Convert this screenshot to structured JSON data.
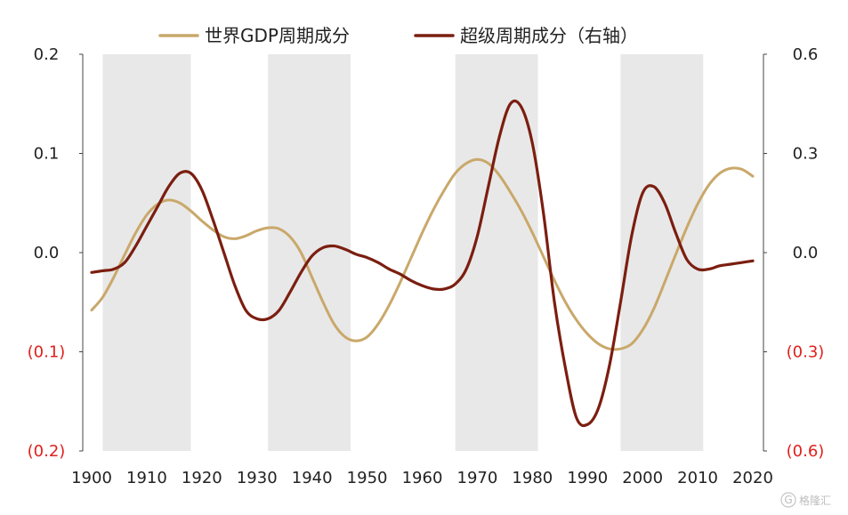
{
  "chart_data": {
    "type": "line",
    "title": "",
    "xlabel": "",
    "ylabel": "",
    "xlim": [
      1900,
      2020
    ],
    "x_ticks": [
      1900,
      1910,
      1920,
      1930,
      1940,
      1950,
      1960,
      1970,
      1980,
      1990,
      2000,
      2010,
      2020
    ],
    "x_tick_labels": [
      "1900",
      "1910",
      "1920",
      "1930",
      "1940",
      "1950",
      "1960",
      "1970",
      "1980",
      "1990",
      "2000",
      "2010",
      "2020"
    ],
    "y_left": {
      "range": [
        -0.2,
        0.2
      ],
      "ticks": [
        0.2,
        0.1,
        0.0,
        -0.1,
        -0.2
      ],
      "tick_labels": [
        "0.2",
        "0.1",
        "0.0",
        "(0.1)",
        "(0.2)"
      ],
      "negative_color": "#e0201b"
    },
    "y_right": {
      "range": [
        -0.6,
        0.6
      ],
      "ticks": [
        0.6,
        0.3,
        0.0,
        -0.3,
        -0.6
      ],
      "tick_labels": [
        "0.6",
        "0.3",
        "0.0",
        "(0.3)",
        "(0.6)"
      ],
      "negative_color": "#e0201b"
    },
    "shaded_periods": [
      [
        1902,
        1918
      ],
      [
        1932,
        1947
      ],
      [
        1966,
        1981
      ],
      [
        1996,
        2011
      ]
    ],
    "shade_color": "#e8e8e8",
    "grid": false,
    "legend_position": "top-center",
    "series": [
      {
        "name": "世界GDP周期成分",
        "axis": "left",
        "color": "#c9a86a",
        "x": [
          1900,
          1902,
          1904,
          1906,
          1908,
          1910,
          1912,
          1914,
          1916,
          1918,
          1920,
          1922,
          1924,
          1926,
          1928,
          1930,
          1932,
          1934,
          1936,
          1938,
          1940,
          1942,
          1944,
          1946,
          1948,
          1950,
          1952,
          1954,
          1956,
          1958,
          1960,
          1962,
          1964,
          1966,
          1968,
          1970,
          1972,
          1974,
          1976,
          1978,
          1980,
          1982,
          1984,
          1986,
          1988,
          1990,
          1992,
          1994,
          1996,
          1998,
          2000,
          2002,
          2004,
          2006,
          2008,
          2010,
          2012,
          2014,
          2016,
          2018,
          2020
        ],
        "values": [
          -0.058,
          -0.045,
          -0.025,
          -0.002,
          0.02,
          0.038,
          0.049,
          0.053,
          0.05,
          0.042,
          0.032,
          0.023,
          0.016,
          0.014,
          0.017,
          0.022,
          0.025,
          0.024,
          0.016,
          0.0,
          -0.025,
          -0.05,
          -0.072,
          -0.085,
          -0.089,
          -0.085,
          -0.072,
          -0.053,
          -0.03,
          -0.005,
          0.02,
          0.043,
          0.063,
          0.08,
          0.09,
          0.094,
          0.09,
          0.078,
          0.061,
          0.042,
          0.02,
          -0.004,
          -0.028,
          -0.05,
          -0.068,
          -0.082,
          -0.092,
          -0.097,
          -0.097,
          -0.092,
          -0.078,
          -0.057,
          -0.03,
          -0.002,
          0.025,
          0.049,
          0.068,
          0.08,
          0.085,
          0.084,
          0.077
        ]
      },
      {
        "name": "超级周期成分（右轴）",
        "axis": "right",
        "color": "#7b1e10",
        "x": [
          1900,
          1902,
          1904,
          1906,
          1908,
          1910,
          1912,
          1914,
          1916,
          1918,
          1920,
          1922,
          1924,
          1926,
          1928,
          1930,
          1932,
          1934,
          1936,
          1938,
          1940,
          1942,
          1944,
          1946,
          1948,
          1950,
          1952,
          1954,
          1956,
          1958,
          1960,
          1962,
          1964,
          1966,
          1968,
          1970,
          1972,
          1974,
          1976,
          1978,
          1980,
          1982,
          1984,
          1986,
          1988,
          1990,
          1992,
          1994,
          1996,
          1998,
          2000,
          2002,
          2004,
          2006,
          2008,
          2010,
          2012,
          2014,
          2016,
          2018,
          2020
        ],
        "values": [
          -0.06,
          -0.055,
          -0.05,
          -0.03,
          0.02,
          0.08,
          0.14,
          0.2,
          0.24,
          0.24,
          0.19,
          0.1,
          0.0,
          -0.1,
          -0.175,
          -0.2,
          -0.2,
          -0.175,
          -0.12,
          -0.06,
          -0.01,
          0.015,
          0.02,
          0.01,
          -0.005,
          -0.015,
          -0.03,
          -0.05,
          -0.065,
          -0.085,
          -0.1,
          -0.11,
          -0.11,
          -0.095,
          -0.05,
          0.05,
          0.2,
          0.35,
          0.45,
          0.44,
          0.33,
          0.12,
          -0.15,
          -0.35,
          -0.5,
          -0.52,
          -0.47,
          -0.34,
          -0.15,
          0.05,
          0.18,
          0.2,
          0.15,
          0.06,
          -0.02,
          -0.05,
          -0.05,
          -0.04,
          -0.035,
          -0.03,
          -0.025
        ]
      }
    ]
  },
  "watermark": {
    "text": "格隆汇",
    "icon": "circle-g-icon"
  }
}
